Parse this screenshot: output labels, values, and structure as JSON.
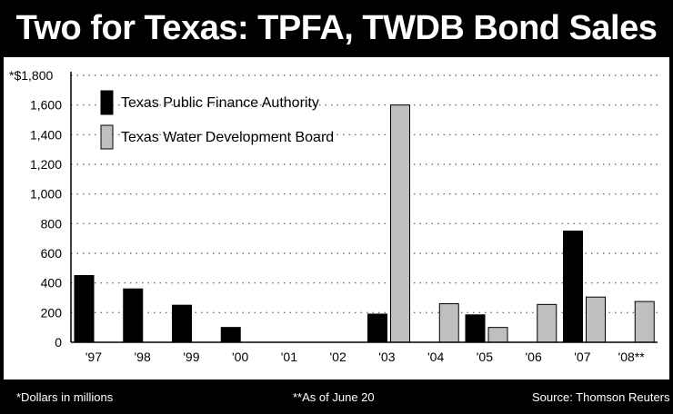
{
  "title": "Two for Texas: TPFA, TWDB Bond Sales",
  "footer": {
    "note": "*Dollars in millions",
    "asof": "**As of June 20",
    "source": "Source: Thomson Reuters"
  },
  "colors": {
    "tpfa": "#000000",
    "twdb": "#bfbfbf",
    "background": "#ffffff",
    "frame": "#000000"
  },
  "chart_data": {
    "type": "bar",
    "title": "Two for Texas: TPFA, TWDB Bond Sales",
    "ylabel": "*$1,800",
    "y_tick_labels": [
      "0",
      "200",
      "400",
      "600",
      "800",
      "1,000",
      "1,200",
      "1,400",
      "1,600",
      "*$1,800"
    ],
    "y_ticks": [
      0,
      200,
      400,
      600,
      800,
      1000,
      1200,
      1400,
      1600,
      1800
    ],
    "ylim": [
      0,
      1800
    ],
    "grid": true,
    "legend_position": "top-left",
    "categories": [
      "'97",
      "'98",
      "'99",
      "'00",
      "'01",
      "'02",
      "'03",
      "'04",
      "'05",
      "'06",
      "'07",
      "'08**"
    ],
    "series": [
      {
        "name": "Texas Public Finance Authority",
        "color": "#000000",
        "values": [
          450,
          360,
          250,
          100,
          0,
          0,
          190,
          0,
          185,
          0,
          750,
          0
        ]
      },
      {
        "name": "Texas Water Development Board",
        "color": "#bfbfbf",
        "values": [
          0,
          0,
          0,
          0,
          0,
          0,
          1600,
          260,
          100,
          255,
          305,
          275
        ]
      }
    ]
  }
}
